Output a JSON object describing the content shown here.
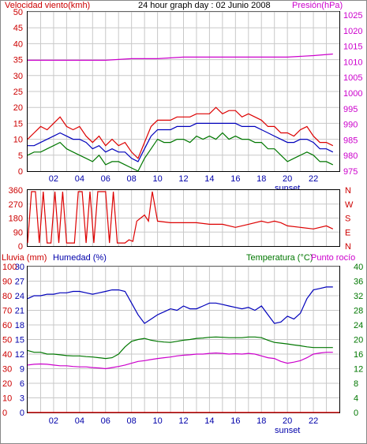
{
  "header": {
    "left_label": "Velocidad viento(kmh)",
    "center_label": "24 hour graph day : 02 Junio 2008",
    "right_label": "Presión(hPa)"
  },
  "bottom_header": {
    "rain_label": "Lluvia (mm)",
    "humidity_label": "Humedad (%)",
    "temp_label": "Temperatura (°C)",
    "dew_label": "Punto rocío"
  },
  "colors": {
    "wind_red": "#dd0000",
    "wind_blue": "#0000bb",
    "wind_green": "#007700",
    "pressure": "#cc00cc",
    "humidity": "#0000bb",
    "temperature": "#007700",
    "dewpoint": "#cc00cc",
    "rain": "#dd0000",
    "axis_red": "#cc0000",
    "axis_magenta": "#cc00cc",
    "axis_green": "#007700",
    "axis_blue": "#0000aa",
    "grid": "#c8c8c8",
    "border": "#000000"
  },
  "chart_data": [
    {
      "type": "line",
      "x_ticks": [
        "02",
        "04",
        "06",
        "08",
        "10",
        "12",
        "14",
        "16",
        "18",
        "20",
        "22"
      ],
      "x_annotation": "sunset",
      "xlim": [
        0,
        24
      ],
      "y_left": {
        "label": "Velocidad viento(kmh)",
        "ticks": [
          0,
          5,
          10,
          15,
          20,
          25,
          30,
          35,
          40,
          45,
          50
        ],
        "lim": [
          0,
          50
        ]
      },
      "y_right": {
        "label": "Presión(hPa)",
        "ticks": [
          975,
          980,
          985,
          990,
          995,
          1000,
          1005,
          1010,
          1015,
          1020,
          1025
        ],
        "lim": [
          975,
          1026
        ]
      },
      "series": [
        {
          "name": "Velocidad viento(kmh)",
          "axis": "left",
          "color": "#dd0000",
          "x": [
            0,
            0.5,
            1,
            1.5,
            2,
            2.5,
            3,
            3.5,
            4,
            4.5,
            5,
            5.5,
            6,
            6.5,
            7,
            7.5,
            8,
            8.5,
            9,
            9.5,
            10,
            10.5,
            11,
            11.5,
            12,
            12.5,
            13,
            13.5,
            14,
            14.5,
            15,
            15.5,
            16,
            16.5,
            17,
            17.5,
            18,
            18.5,
            19,
            19.5,
            20,
            20.5,
            21,
            21.5,
            22,
            22.5,
            23,
            23.5
          ],
          "y": [
            10,
            12,
            14,
            13,
            15,
            17,
            14,
            13,
            14,
            11,
            9,
            11,
            8,
            10,
            8,
            9,
            6,
            4,
            9,
            14,
            16,
            16,
            16,
            17,
            17,
            17,
            18,
            18,
            18,
            20,
            18,
            19,
            19,
            17,
            18,
            17,
            16,
            14,
            14,
            12,
            12,
            11,
            13,
            14,
            11,
            9,
            9,
            8
          ]
        },
        {
          "name": "",
          "axis": "left",
          "color": "#0000bb",
          "x": [
            0,
            0.5,
            1,
            1.5,
            2,
            2.5,
            3,
            3.5,
            4,
            4.5,
            5,
            5.5,
            6,
            6.5,
            7,
            7.5,
            8,
            8.5,
            9,
            9.5,
            10,
            10.5,
            11,
            11.5,
            12,
            12.5,
            13,
            13.5,
            14,
            14.5,
            15,
            15.5,
            16,
            16.5,
            17,
            17.5,
            18,
            18.5,
            19,
            19.5,
            20,
            20.5,
            21,
            21.5,
            22,
            22.5,
            23,
            23.5
          ],
          "y": [
            8,
            8,
            9,
            10,
            11,
            12,
            11,
            10,
            10,
            9,
            7,
            8,
            6,
            7,
            6,
            6,
            4,
            3,
            7,
            11,
            13,
            13,
            13,
            14,
            14,
            14,
            15,
            15,
            15,
            15,
            15,
            15,
            15,
            14,
            14,
            14,
            13,
            12,
            11,
            10,
            9,
            9,
            10,
            10,
            9,
            7,
            7,
            6
          ]
        },
        {
          "name": "",
          "axis": "left",
          "color": "#007700",
          "x": [
            0,
            0.5,
            1,
            1.5,
            2,
            2.5,
            3,
            3.5,
            4,
            4.5,
            5,
            5.5,
            6,
            6.5,
            7,
            7.5,
            8,
            8.5,
            9,
            9.5,
            10,
            10.5,
            11,
            11.5,
            12,
            12.5,
            13,
            13.5,
            14,
            14.5,
            15,
            15.5,
            16,
            16.5,
            17,
            17.5,
            18,
            18.5,
            19,
            19.5,
            20,
            20.5,
            21,
            21.5,
            22,
            22.5,
            23,
            23.5
          ],
          "y": [
            5,
            6,
            6,
            7,
            8,
            9,
            7,
            6,
            5,
            4,
            3,
            5,
            2,
            3,
            3,
            2,
            1,
            0,
            4,
            7,
            10,
            9,
            9,
            10,
            10,
            9,
            11,
            10,
            11,
            10,
            12,
            10,
            11,
            10,
            10,
            9,
            9,
            7,
            7,
            5,
            3,
            4,
            5,
            6,
            5,
            3,
            3,
            2
          ]
        },
        {
          "name": "Presión(hPa)",
          "axis": "right",
          "color": "#cc00cc",
          "x": [
            0,
            2,
            4,
            6,
            8,
            10,
            12,
            14,
            16,
            18,
            20,
            22,
            23.5
          ],
          "y": [
            1010.5,
            1010.5,
            1010.5,
            1010.5,
            1011,
            1011,
            1011.5,
            1011.5,
            1011.5,
            1011.5,
            1011.5,
            1012,
            1012.5
          ]
        }
      ]
    },
    {
      "type": "line",
      "x_ticks": [],
      "xlim": [
        0,
        24
      ],
      "y_left": {
        "label": "",
        "ticks": [
          0,
          90,
          180,
          270,
          360
        ],
        "lim": [
          0,
          360
        ]
      },
      "y_right": {
        "label": "",
        "ticks": [
          "N",
          "W",
          "S",
          "E",
          "N"
        ]
      },
      "series": [
        {
          "name": "",
          "axis": "left",
          "color": "#dd0000",
          "x": [
            0,
            0.3,
            0.6,
            0.9,
            1.2,
            1.5,
            1.8,
            2.1,
            2.4,
            2.7,
            3.0,
            3.3,
            3.6,
            3.9,
            4.2,
            4.5,
            4.8,
            5.1,
            5.4,
            5.7,
            6.0,
            6.3,
            6.6,
            6.9,
            7.2,
            7.5,
            7.8,
            8.1,
            8.4,
            8.7,
            9.0,
            9.3,
            9.6,
            10,
            11,
            12,
            13,
            14,
            15,
            16,
            17,
            18,
            18.5,
            19,
            19.5,
            20,
            21,
            22,
            23,
            23.5
          ],
          "y": [
            20,
            350,
            350,
            20,
            350,
            20,
            20,
            350,
            20,
            350,
            20,
            20,
            20,
            350,
            350,
            20,
            350,
            20,
            350,
            350,
            350,
            20,
            350,
            20,
            20,
            20,
            40,
            30,
            160,
            180,
            200,
            160,
            350,
            160,
            150,
            150,
            150,
            140,
            140,
            120,
            140,
            160,
            150,
            160,
            150,
            130,
            120,
            110,
            130,
            110
          ]
        }
      ]
    },
    {
      "type": "line",
      "x_ticks": [
        "02",
        "04",
        "06",
        "08",
        "10",
        "12",
        "14",
        "16",
        "18",
        "20",
        "22"
      ],
      "x_annotation": "sunset",
      "xlim": [
        0,
        24
      ],
      "y_rain": {
        "label": "Lluvia (mm)",
        "ticks": [
          0,
          10,
          20,
          30,
          40,
          50,
          60,
          70,
          80,
          90,
          100
        ],
        "lim": [
          0,
          100
        ]
      },
      "y_humidity": {
        "label": "Humedad (%)",
        "ticks": [
          0,
          3,
          6,
          9,
          12,
          15,
          18,
          21,
          24,
          27,
          30
        ],
        "lim": [
          0,
          30
        ]
      },
      "y_temp": {
        "label": "Temperatura (°C)",
        "ticks": [
          0,
          4,
          8,
          12,
          16,
          20,
          24,
          28,
          32,
          36,
          40
        ],
        "lim": [
          0,
          40
        ]
      },
      "series": [
        {
          "name": "Humedad (%)",
          "axis": "left",
          "color": "#0000bb",
          "x": [
            0,
            0.5,
            1,
            1.5,
            2,
            2.5,
            3,
            3.5,
            4,
            4.5,
            5,
            5.5,
            6,
            6.5,
            7,
            7.5,
            8,
            8.5,
            9,
            9.5,
            10,
            10.5,
            11,
            11.5,
            12,
            12.5,
            13,
            13.5,
            14,
            14.5,
            15,
            15.5,
            16,
            16.5,
            17,
            17.5,
            18,
            18.5,
            19,
            19.5,
            20,
            20.5,
            21,
            21.5,
            22,
            22.5,
            23,
            23.5
          ],
          "y": [
            78,
            80,
            80,
            81,
            81,
            82,
            82,
            83,
            83,
            82,
            81,
            82,
            83,
            84,
            84,
            83,
            75,
            67,
            61,
            64,
            67,
            69,
            71,
            70,
            73,
            71,
            71,
            73,
            75,
            75,
            74,
            73,
            72,
            71,
            72,
            70,
            73,
            67,
            61,
            62,
            66,
            64,
            68,
            78,
            84,
            85,
            86,
            86
          ]
        },
        {
          "name": "Temperatura (°C)",
          "axis": "temp",
          "color": "#007700",
          "x": [
            0,
            0.5,
            1,
            1.5,
            2,
            2.5,
            3,
            3.5,
            4,
            4.5,
            5,
            5.5,
            6,
            6.5,
            7,
            7.5,
            8,
            8.5,
            9,
            9.5,
            10,
            10.5,
            11,
            11.5,
            12,
            12.5,
            13,
            13.5,
            14,
            14.5,
            15,
            15.5,
            16,
            16.5,
            17,
            17.5,
            18,
            18.5,
            19,
            19.5,
            20,
            20.5,
            21,
            21.5,
            22,
            22.5,
            23,
            23.5
          ],
          "y": [
            17,
            16.5,
            16.5,
            16,
            16,
            15.8,
            15.6,
            15.5,
            15.5,
            15.3,
            15.2,
            15,
            14.8,
            15,
            16,
            18,
            19.5,
            20,
            20.3,
            19.8,
            19.5,
            19.3,
            19.2,
            19.5,
            19.8,
            20,
            20.3,
            20.4,
            20.6,
            20.7,
            20.6,
            20.5,
            20.5,
            20.5,
            20.7,
            20.7,
            20.5,
            19.8,
            19.2,
            19,
            18.8,
            18.5,
            18.3,
            18,
            17.8,
            17.8,
            17.8,
            17.8
          ]
        },
        {
          "name": "Punto rocío",
          "axis": "temp",
          "color": "#cc00cc",
          "x": [
            0,
            0.5,
            1,
            1.5,
            2,
            2.5,
            3,
            3.5,
            4,
            4.5,
            5,
            5.5,
            6,
            6.5,
            7,
            7.5,
            8,
            8.5,
            9,
            9.5,
            10,
            10.5,
            11,
            11.5,
            12,
            12.5,
            13,
            13.5,
            14,
            14.5,
            15,
            15.5,
            16,
            16.5,
            17,
            17.5,
            18,
            18.5,
            19,
            19.5,
            20,
            20.5,
            21,
            21.5,
            22,
            22.5,
            23,
            23.5
          ],
          "y": [
            13,
            13.2,
            13.3,
            13.2,
            13,
            12.8,
            12.8,
            12.6,
            12.5,
            12.5,
            12.3,
            12.2,
            12,
            12.3,
            12.6,
            13,
            13.5,
            14,
            14.2,
            14.5,
            14.8,
            15,
            15.2,
            15.5,
            15.7,
            15.8,
            16,
            16,
            16.2,
            16.3,
            16.2,
            16,
            16.1,
            16,
            16.2,
            16,
            15.5,
            15,
            14.8,
            14,
            13.5,
            13.8,
            14.2,
            15,
            16,
            16.3,
            16.5,
            16.5
          ]
        },
        {
          "name": "Lluvia (mm)",
          "axis": "rain",
          "color": "#dd0000",
          "x": [
            0,
            24
          ],
          "y": [
            0,
            0
          ]
        }
      ]
    }
  ]
}
